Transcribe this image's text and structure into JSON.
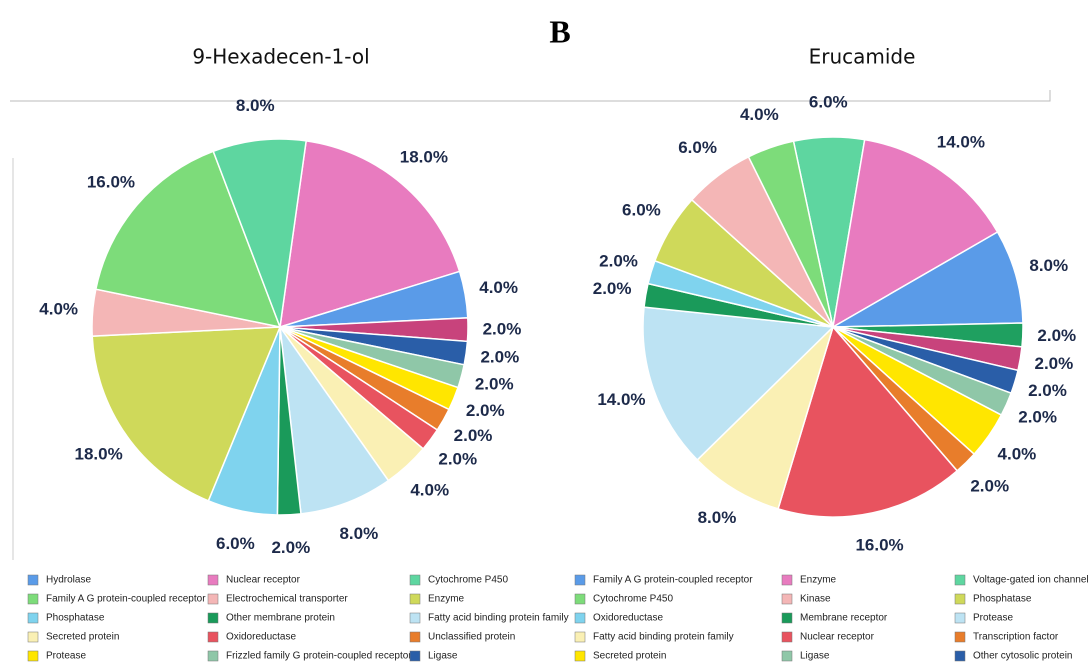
{
  "panel_label": "B",
  "chart_data": [
    {
      "type": "pie",
      "title": "9-Hexadecen-1-ol",
      "values": [
        18,
        4,
        2,
        2,
        2,
        2,
        2,
        2,
        4,
        8,
        2,
        6,
        18,
        4,
        16,
        8
      ],
      "value_labels": [
        "18.0%",
        "4.0%",
        "2.0%",
        "2.0%",
        "2.0%",
        "2.0%",
        "2.0%",
        "2.0%",
        "4.0%",
        "8.0%",
        "2.0%",
        "6.0%",
        "18.0%",
        "4.0%",
        "16.0%",
        "8.0%"
      ],
      "colors": [
        "#e87bbf",
        "#5a9be8",
        "#c8437c",
        "#2a5ea8",
        "#8fc7a8",
        "#ffe600",
        "#e87d2b",
        "#e8535f",
        "#faf0b4",
        "#bde3f3",
        "#1a9a5a",
        "#7fd3ee",
        "#cfd95a",
        "#f4b6b6",
        "#7ddc7a",
        "#5ed6a0"
      ],
      "legend": [
        {
          "name": "Hydrolase",
          "color": "#5a9be8"
        },
        {
          "name": "Nuclear receptor",
          "color": "#e87bbf"
        },
        {
          "name": "Cytochrome P450",
          "color": "#5ed6a0"
        },
        {
          "name": "Family A G protein-coupled receptor",
          "color": "#7ddc7a"
        },
        {
          "name": "Electrochemical transporter",
          "color": "#f4b6b6"
        },
        {
          "name": "Enzyme",
          "color": "#cfd95a"
        },
        {
          "name": "Phosphatase",
          "color": "#7fd3ee"
        },
        {
          "name": "Other membrane protein",
          "color": "#1a9a5a"
        },
        {
          "name": "Fatty acid binding protein family",
          "color": "#bde3f3"
        },
        {
          "name": "Secreted protein",
          "color": "#faf0b4"
        },
        {
          "name": "Oxidoreductase",
          "color": "#e8535f"
        },
        {
          "name": "Unclassified protein",
          "color": "#e87d2b"
        },
        {
          "name": "Protease",
          "color": "#ffe600"
        },
        {
          "name": "Frizzled family G protein-coupled receptor",
          "color": "#8fc7a8"
        },
        {
          "name": "Ligase",
          "color": "#2a5ea8"
        }
      ]
    },
    {
      "type": "pie",
      "title": "Erucamide",
      "values": [
        6,
        14,
        8,
        2,
        2,
        2,
        2,
        4,
        2,
        16,
        8,
        14,
        2,
        2,
        6,
        6,
        4
      ],
      "value_labels": [
        "6.0%",
        "14.0%",
        "8.0%",
        "2.0%",
        "2.0%",
        "2.0%",
        "2.0%",
        "4.0%",
        "2.0%",
        "16.0%",
        "8.0%",
        "14.0%",
        "2.0%",
        "2.0%",
        "6.0%",
        "6.0%",
        "4.0%"
      ],
      "colors": [
        "#5ed6a0",
        "#e87bbf",
        "#5a9be8",
        "#1fa060",
        "#c8437c",
        "#2a5ea8",
        "#8fc7a8",
        "#ffe600",
        "#e87d2b",
        "#e8535f",
        "#faf0b4",
        "#bde3f3",
        "#1a9a5a",
        "#7fd3ee",
        "#cfd95a",
        "#f4b6b6",
        "#7ddc7a"
      ],
      "legend": [
        {
          "name": "Family A G protein-coupled receptor",
          "color": "#5a9be8"
        },
        {
          "name": "Enzyme",
          "color": "#e87bbf"
        },
        {
          "name": "Voltage-gated ion channel",
          "color": "#5ed6a0"
        },
        {
          "name": "Cytochrome P450",
          "color": "#7ddc7a"
        },
        {
          "name": "Kinase",
          "color": "#f4b6b6"
        },
        {
          "name": "Phosphatase",
          "color": "#cfd95a"
        },
        {
          "name": "Oxidoreductase",
          "color": "#7fd3ee"
        },
        {
          "name": "Membrane receptor",
          "color": "#1a9a5a"
        },
        {
          "name": "Protease",
          "color": "#bde3f3"
        },
        {
          "name": "Fatty acid binding protein family",
          "color": "#faf0b4"
        },
        {
          "name": "Nuclear receptor",
          "color": "#e8535f"
        },
        {
          "name": "Transcription factor",
          "color": "#e87d2b"
        },
        {
          "name": "Secreted protein",
          "color": "#ffe600"
        },
        {
          "name": "Ligase",
          "color": "#8fc7a8"
        },
        {
          "name": "Other cytosolic protein",
          "color": "#2a5ea8"
        }
      ]
    }
  ]
}
